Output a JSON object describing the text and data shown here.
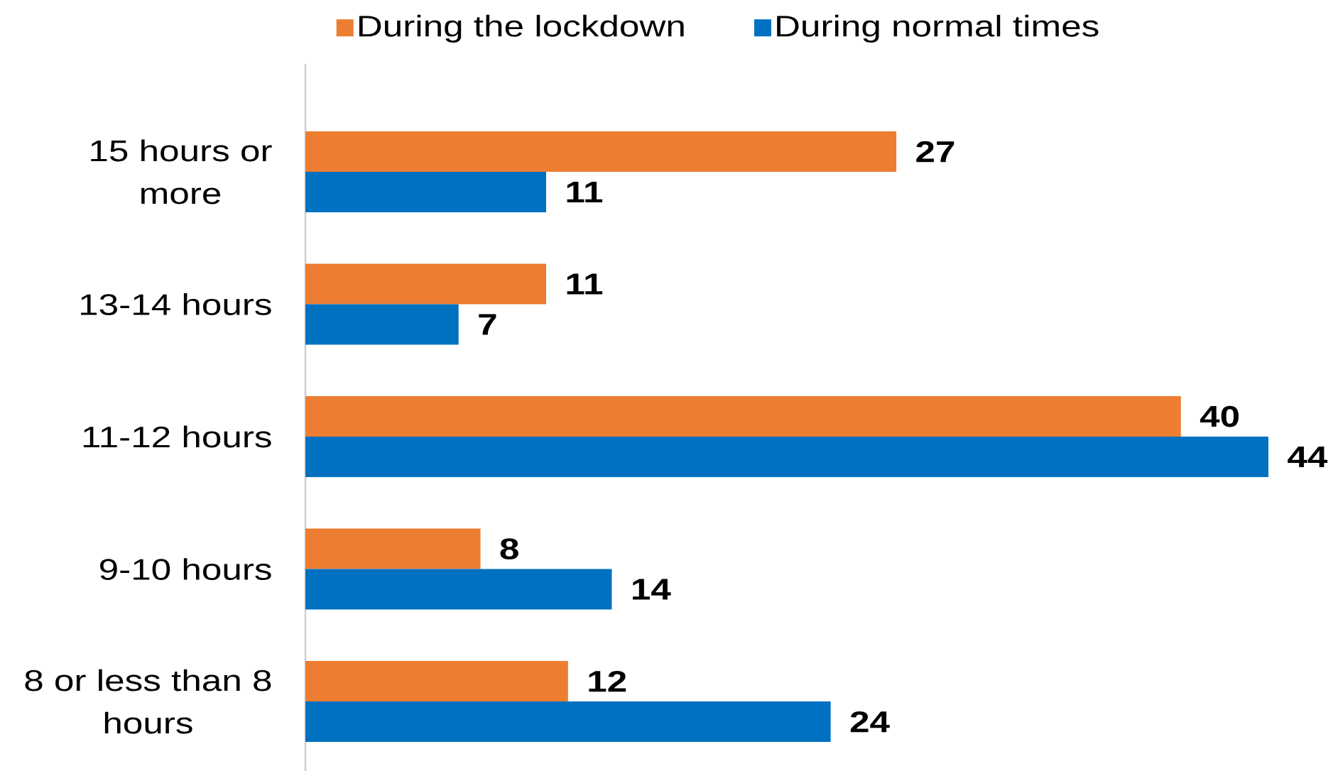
{
  "chart_data": {
    "type": "bar",
    "orientation": "horizontal",
    "categories": [
      "15 hours or more",
      "13-14 hours",
      "11-12 hours",
      "9-10 hours",
      "8 or less than 8 hours"
    ],
    "series": [
      {
        "name": "During the lockdown",
        "color": "#ed7d31",
        "values": [
          27,
          11,
          40,
          8,
          12
        ]
      },
      {
        "name": "During normal times",
        "color": "#0070c0",
        "values": [
          11,
          7,
          44,
          14,
          24
        ]
      }
    ],
    "xlim": [
      0,
      44
    ],
    "data_labels": true,
    "legend": "top",
    "tick_labels": "y"
  }
}
